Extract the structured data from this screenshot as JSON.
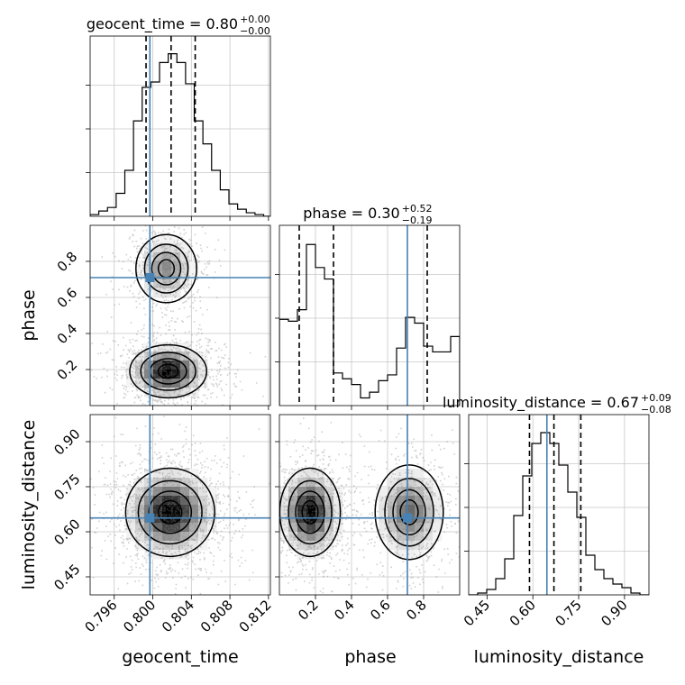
{
  "figure": {
    "type": "corner-plot",
    "parameters": [
      "geocent_time",
      "phase",
      "luminosity_distance"
    ]
  },
  "colors": {
    "truth": "#4682b4",
    "hist": "#000000",
    "grid": "#c8c8c8",
    "density_dark": "#000000"
  },
  "chart_data": [
    {
      "type": "histogram",
      "name": "hist-geocent-time",
      "title_param": "geocent_time",
      "title_value": "0.80",
      "title_plus": "+0.00",
      "title_minus": "−0.00",
      "xlim": [
        0.7935,
        0.8122
      ],
      "xticks": [
        0.796,
        0.8,
        0.804,
        0.808,
        0.812
      ],
      "xtick_labels": [
        "0.796",
        "0.800",
        "0.804",
        "0.808",
        "0.812"
      ],
      "bin_edges": [
        0.7935,
        0.7944,
        0.7953,
        0.7962,
        0.7971,
        0.798,
        0.7989,
        0.7998,
        0.8007,
        0.8016,
        0.8025,
        0.8034,
        0.8043,
        0.8052,
        0.8061,
        0.807,
        0.8079,
        0.8088,
        0.8097,
        0.8106,
        0.8115,
        0.8122
      ],
      "counts": [
        0.01,
        0.03,
        0.05,
        0.13,
        0.26,
        0.54,
        0.73,
        0.76,
        0.87,
        0.92,
        0.87,
        0.75,
        0.54,
        0.41,
        0.26,
        0.15,
        0.07,
        0.04,
        0.02,
        0.01,
        0.0
      ],
      "ylim": [
        0,
        1.02
      ],
      "quantile_lines": [
        0.7993,
        0.8019,
        0.8044
      ],
      "truth": 0.7997
    },
    {
      "type": "histogram",
      "name": "hist-phase",
      "title_param": "phase",
      "title_value": "0.30",
      "title_plus": "+0.52",
      "title_minus": "−0.19",
      "xlim": [
        0.0,
        1.0
      ],
      "xticks": [
        0.2,
        0.4,
        0.6,
        0.8
      ],
      "xtick_labels": [
        "0.2",
        "0.4",
        "0.6",
        "0.8"
      ],
      "bin_edges": [
        0.0,
        0.05,
        0.1,
        0.15,
        0.2,
        0.25,
        0.3,
        0.35,
        0.4,
        0.45,
        0.5,
        0.55,
        0.6,
        0.65,
        0.7,
        0.75,
        0.8,
        0.85,
        0.9,
        0.95,
        1.0
      ],
      "counts": [
        0.45,
        0.44,
        0.5,
        0.84,
        0.72,
        0.66,
        0.17,
        0.14,
        0.11,
        0.04,
        0.07,
        0.13,
        0.16,
        0.3,
        0.46,
        0.43,
        0.31,
        0.28,
        0.28,
        0.36
      ],
      "ylim": [
        0,
        0.94
      ],
      "quantile_lines": [
        0.11,
        0.3,
        0.82
      ],
      "truth": 0.71
    },
    {
      "type": "histogram",
      "name": "hist-luminosity-distance",
      "title_param": "luminosity_distance",
      "title_value": "0.67",
      "title_plus": "+0.09",
      "title_minus": "−0.08",
      "xlim": [
        0.39,
        0.98
      ],
      "xticks": [
        0.45,
        0.6,
        0.75,
        0.9
      ],
      "xtick_labels": [
        "0.45",
        "0.60",
        "0.75",
        "0.90"
      ],
      "bin_edges": [
        0.39,
        0.4195,
        0.449,
        0.4785,
        0.508,
        0.5375,
        0.567,
        0.5965,
        0.626,
        0.6555,
        0.685,
        0.7145,
        0.744,
        0.7735,
        0.803,
        0.8325,
        0.862,
        0.8915,
        0.921,
        0.9505,
        0.98
      ],
      "counts": [
        0.0,
        0.01,
        0.03,
        0.09,
        0.2,
        0.44,
        0.66,
        0.84,
        0.9,
        0.84,
        0.72,
        0.57,
        0.43,
        0.22,
        0.14,
        0.09,
        0.06,
        0.04,
        0.01,
        0.0
      ],
      "ylim": [
        0,
        1.0
      ],
      "quantile_lines": [
        0.589,
        0.669,
        0.757
      ],
      "truth": 0.646
    },
    {
      "type": "contour-density",
      "name": "panel-geocent-time-vs-phase",
      "x_param": "geocent_time",
      "y_param": "phase",
      "xlim": [
        0.7935,
        0.8122
      ],
      "ylim": [
        0.0,
        1.0
      ],
      "yticks": [
        0.2,
        0.4,
        0.6,
        0.8
      ],
      "ytick_labels": [
        "0.2",
        "0.4",
        "0.6",
        "0.8"
      ],
      "modes": [
        {
          "x": 0.8014,
          "y": 0.76,
          "sx": 0.0015,
          "sy": 0.09,
          "w": 0.35
        },
        {
          "x": 0.8016,
          "y": 0.19,
          "sx": 0.0019,
          "sy": 0.07,
          "w": 0.65
        }
      ],
      "truth": {
        "x": 0.7997,
        "y": 0.71
      }
    },
    {
      "type": "contour-density",
      "name": "panel-geocent-time-vs-luminosity-distance",
      "x_param": "geocent_time",
      "y_param": "luminosity_distance",
      "xlim": [
        0.7935,
        0.8122
      ],
      "ylim": [
        0.39,
        0.99
      ],
      "yticks": [
        0.45,
        0.6,
        0.75,
        0.9
      ],
      "ytick_labels": [
        "0.45",
        "0.60",
        "0.75",
        "0.90"
      ],
      "modes": [
        {
          "x": 0.8018,
          "y": 0.665,
          "sx": 0.0022,
          "sy": 0.07,
          "w": 1.0
        }
      ],
      "truth": {
        "x": 0.7997,
        "y": 0.646
      }
    },
    {
      "type": "contour-density",
      "name": "panel-phase-vs-luminosity-distance",
      "x_param": "phase",
      "y_param": "luminosity_distance",
      "xlim": [
        0.0,
        1.0
      ],
      "ylim": [
        0.39,
        0.99
      ],
      "modes": [
        {
          "x": 0.17,
          "y": 0.665,
          "sx": 0.08,
          "sy": 0.07,
          "w": 0.6
        },
        {
          "x": 0.72,
          "y": 0.665,
          "sx": 0.09,
          "sy": 0.075,
          "w": 0.4
        }
      ],
      "truth": {
        "x": 0.71,
        "y": 0.646
      }
    }
  ],
  "axis_labels": {
    "x": [
      "geocent_time",
      "phase",
      "luminosity_distance"
    ],
    "y": [
      "phase",
      "luminosity_distance"
    ]
  }
}
